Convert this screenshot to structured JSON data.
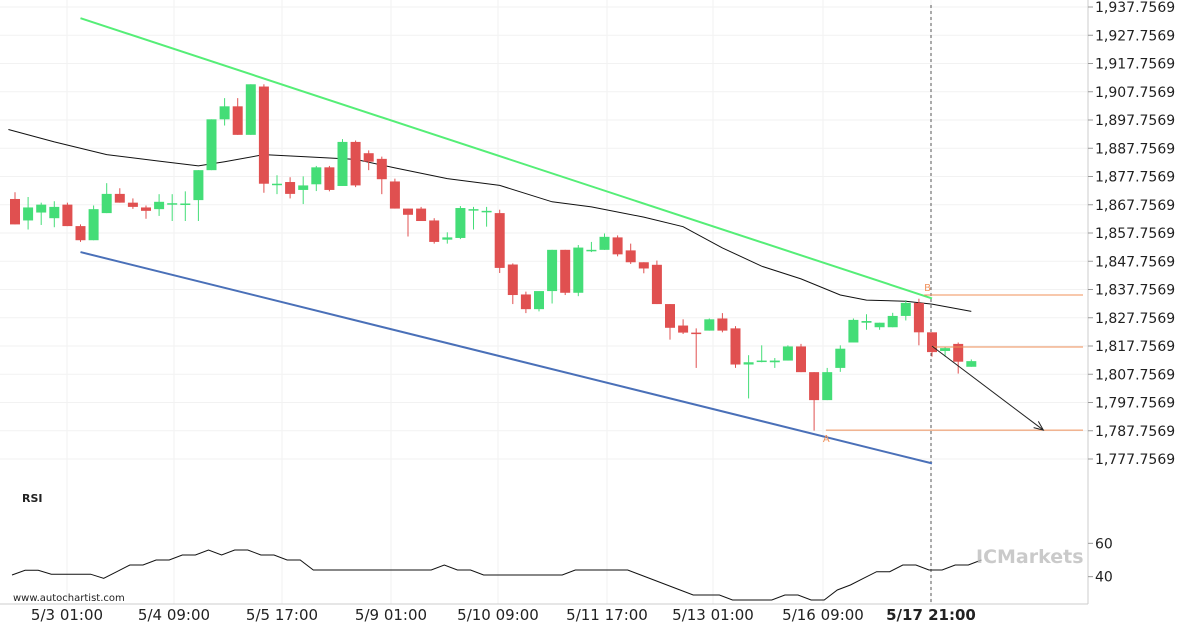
{
  "chart_data": {
    "type": "candlestick",
    "y_axis_labels": [
      "1,937.7569",
      "1,927.7569",
      "1,917.7569",
      "1,907.7569",
      "1,897.7569",
      "1,887.7569",
      "1,877.7569",
      "1,867.7569",
      "1,857.7569",
      "1,847.7569",
      "1,837.7569",
      "1,827.7569",
      "1,817.7569",
      "1,807.7569",
      "1,797.7569",
      "1,787.7569",
      "1,777.7569"
    ],
    "ylim": [
      1772.7569,
      1940.7569
    ],
    "x_labels": [
      "5/3 01:00",
      "5/4 09:00",
      "5/5 17:00",
      "5/9 01:00",
      "5/10 09:00",
      "5/11 17:00",
      "5/13 01:00",
      "5/16 09:00",
      "5/17 21:00"
    ],
    "highlighted_x_label": "5/17 21:00",
    "candles": [
      {
        "o": 1869.8,
        "h": 1872.2,
        "l": 1860.8,
        "c": 1860.8
      },
      {
        "o": 1862.2,
        "h": 1870.5,
        "l": 1859.0,
        "c": 1866.8
      },
      {
        "o": 1865.0,
        "h": 1868.5,
        "l": 1860.6,
        "c": 1867.8
      },
      {
        "o": 1863.0,
        "h": 1869.0,
        "l": 1859.8,
        "c": 1867.0
      },
      {
        "o": 1867.8,
        "h": 1868.5,
        "l": 1860.2,
        "c": 1860.2
      },
      {
        "o": 1860.2,
        "h": 1860.8,
        "l": 1854.6,
        "c": 1855.2
      },
      {
        "o": 1855.2,
        "h": 1867.5,
        "l": 1855.2,
        "c": 1866.2
      },
      {
        "o": 1864.8,
        "h": 1875.4,
        "l": 1864.8,
        "c": 1871.6
      },
      {
        "o": 1871.6,
        "h": 1873.6,
        "l": 1868.5,
        "c": 1868.5
      },
      {
        "o": 1868.5,
        "h": 1870.0,
        "l": 1866.3,
        "c": 1867.0
      },
      {
        "o": 1866.8,
        "h": 1867.5,
        "l": 1862.8,
        "c": 1865.6
      },
      {
        "o": 1866.2,
        "h": 1871.5,
        "l": 1863.8,
        "c": 1868.8
      },
      {
        "o": 1868.3,
        "h": 1871.5,
        "l": 1862.0,
        "c": 1868.3
      },
      {
        "o": 1868.2,
        "h": 1872.5,
        "l": 1862.0,
        "c": 1868.2
      },
      {
        "o": 1869.4,
        "h": 1880.0,
        "l": 1862.0,
        "c": 1880.0
      },
      {
        "o": 1880.0,
        "h": 1898.0,
        "l": 1880.0,
        "c": 1898.0
      },
      {
        "o": 1898.0,
        "h": 1905.5,
        "l": 1895.8,
        "c": 1902.6
      },
      {
        "o": 1902.6,
        "h": 1905.5,
        "l": 1892.5,
        "c": 1892.5
      },
      {
        "o": 1892.5,
        "h": 1910.4,
        "l": 1892.5,
        "c": 1910.4
      },
      {
        "o": 1909.6,
        "h": 1910.4,
        "l": 1872.0,
        "c": 1875.2
      },
      {
        "o": 1875.2,
        "h": 1878.2,
        "l": 1871.5,
        "c": 1875.2
      },
      {
        "o": 1875.8,
        "h": 1877.5,
        "l": 1870.0,
        "c": 1871.6
      },
      {
        "o": 1873.0,
        "h": 1877.8,
        "l": 1868.0,
        "c": 1874.6
      },
      {
        "o": 1875.0,
        "h": 1881.5,
        "l": 1872.6,
        "c": 1881.0
      },
      {
        "o": 1881.0,
        "h": 1881.5,
        "l": 1872.5,
        "c": 1873.0
      },
      {
        "o": 1874.4,
        "h": 1891.0,
        "l": 1874.4,
        "c": 1890.0
      },
      {
        "o": 1890.0,
        "h": 1890.5,
        "l": 1874.0,
        "c": 1874.6
      },
      {
        "o": 1886.0,
        "h": 1887.0,
        "l": 1880.0,
        "c": 1883.0
      },
      {
        "o": 1884.0,
        "h": 1884.8,
        "l": 1871.5,
        "c": 1876.8
      },
      {
        "o": 1876.0,
        "h": 1877.0,
        "l": 1866.4,
        "c": 1866.4
      },
      {
        "o": 1866.4,
        "h": 1866.4,
        "l": 1856.5,
        "c": 1864.2
      },
      {
        "o": 1866.4,
        "h": 1867.0,
        "l": 1862.0,
        "c": 1862.0
      },
      {
        "o": 1862.2,
        "h": 1863.0,
        "l": 1854.0,
        "c": 1854.6
      },
      {
        "o": 1855.4,
        "h": 1858.0,
        "l": 1854.0,
        "c": 1856.2
      },
      {
        "o": 1856.0,
        "h": 1867.3,
        "l": 1855.6,
        "c": 1866.6
      },
      {
        "o": 1866.2,
        "h": 1867.0,
        "l": 1859.0,
        "c": 1866.2
      },
      {
        "o": 1865.6,
        "h": 1867.0,
        "l": 1860.0,
        "c": 1865.6
      },
      {
        "o": 1864.8,
        "h": 1866.0,
        "l": 1843.6,
        "c": 1845.4
      },
      {
        "o": 1846.6,
        "h": 1847.0,
        "l": 1832.6,
        "c": 1835.8
      },
      {
        "o": 1836.0,
        "h": 1837.0,
        "l": 1829.4,
        "c": 1830.8
      },
      {
        "o": 1830.8,
        "h": 1837.0,
        "l": 1830.0,
        "c": 1837.2
      },
      {
        "o": 1837.2,
        "h": 1851.8,
        "l": 1832.8,
        "c": 1851.8
      },
      {
        "o": 1851.8,
        "h": 1851.8,
        "l": 1835.8,
        "c": 1836.6
      },
      {
        "o": 1836.6,
        "h": 1853.5,
        "l": 1835.4,
        "c": 1852.6
      },
      {
        "o": 1851.8,
        "h": 1854.6,
        "l": 1851.0,
        "c": 1851.8
      },
      {
        "o": 1851.8,
        "h": 1857.6,
        "l": 1851.8,
        "c": 1856.4
      },
      {
        "o": 1856.2,
        "h": 1856.9,
        "l": 1849.5,
        "c": 1850.2
      },
      {
        "o": 1851.6,
        "h": 1854.0,
        "l": 1846.8,
        "c": 1847.4
      },
      {
        "o": 1847.4,
        "h": 1847.4,
        "l": 1843.5,
        "c": 1845.2
      },
      {
        "o": 1846.5,
        "h": 1848.0,
        "l": 1832.6,
        "c": 1832.6
      },
      {
        "o": 1832.6,
        "h": 1832.6,
        "l": 1820.0,
        "c": 1824.2
      },
      {
        "o": 1825.0,
        "h": 1827.2,
        "l": 1822.0,
        "c": 1822.5
      },
      {
        "o": 1822.5,
        "h": 1824.0,
        "l": 1810.0,
        "c": 1822.0
      },
      {
        "o": 1823.2,
        "h": 1827.5,
        "l": 1823.2,
        "c": 1827.2
      },
      {
        "o": 1827.5,
        "h": 1829.4,
        "l": 1822.6,
        "c": 1823.2
      },
      {
        "o": 1824.0,
        "h": 1824.8,
        "l": 1810.0,
        "c": 1811.2
      },
      {
        "o": 1811.2,
        "h": 1814.5,
        "l": 1799.2,
        "c": 1812.0
      },
      {
        "o": 1812.6,
        "h": 1818.0,
        "l": 1812.0,
        "c": 1812.6
      },
      {
        "o": 1812.0,
        "h": 1813.5,
        "l": 1810.0,
        "c": 1812.6
      },
      {
        "o": 1812.6,
        "h": 1818.0,
        "l": 1812.6,
        "c": 1817.6
      },
      {
        "o": 1817.6,
        "h": 1818.5,
        "l": 1808.5,
        "c": 1808.5
      },
      {
        "o": 1808.5,
        "h": 1808.5,
        "l": 1787.8,
        "c": 1798.6
      },
      {
        "o": 1798.6,
        "h": 1810.0,
        "l": 1798.6,
        "c": 1808.5
      },
      {
        "o": 1810.0,
        "h": 1818.0,
        "l": 1808.6,
        "c": 1816.8
      },
      {
        "o": 1819.0,
        "h": 1827.5,
        "l": 1819.0,
        "c": 1827.0
      },
      {
        "o": 1826.0,
        "h": 1829.0,
        "l": 1823.5,
        "c": 1826.6
      },
      {
        "o": 1824.4,
        "h": 1826.0,
        "l": 1823.5,
        "c": 1826.0
      },
      {
        "o": 1824.4,
        "h": 1829.5,
        "l": 1824.4,
        "c": 1828.4
      },
      {
        "o": 1828.4,
        "h": 1834.0,
        "l": 1826.8,
        "c": 1833.0
      },
      {
        "o": 1833.0,
        "h": 1834.5,
        "l": 1818.0,
        "c": 1822.6
      },
      {
        "o": 1822.6,
        "h": 1822.6,
        "l": 1814.0,
        "c": 1815.6
      },
      {
        "o": 1816.0,
        "h": 1817.5,
        "l": 1814.0,
        "c": 1817.0
      },
      {
        "o": 1818.5,
        "h": 1819.0,
        "l": 1808.0,
        "c": 1812.2
      },
      {
        "o": 1810.4,
        "h": 1813.0,
        "l": 1810.4,
        "c": 1812.4
      }
    ],
    "moving_average": [
      {
        "i": -0.5,
        "v": 1894.4
      },
      {
        "i": 3,
        "v": 1890.0
      },
      {
        "i": 7,
        "v": 1885.5
      },
      {
        "i": 11,
        "v": 1883.2
      },
      {
        "i": 14,
        "v": 1881.5
      },
      {
        "i": 16,
        "v": 1883.0
      },
      {
        "i": 19,
        "v": 1885.5
      },
      {
        "i": 22,
        "v": 1884.8
      },
      {
        "i": 26,
        "v": 1883.8
      },
      {
        "i": 29,
        "v": 1880.8
      },
      {
        "i": 33,
        "v": 1877.0
      },
      {
        "i": 37,
        "v": 1874.6
      },
      {
        "i": 41,
        "v": 1868.8
      },
      {
        "i": 44,
        "v": 1867.0
      },
      {
        "i": 48,
        "v": 1863.4
      },
      {
        "i": 51,
        "v": 1860.0
      },
      {
        "i": 54,
        "v": 1852.5
      },
      {
        "i": 57,
        "v": 1846.0
      },
      {
        "i": 60,
        "v": 1841.5
      },
      {
        "i": 63,
        "v": 1835.8
      },
      {
        "i": 65,
        "v": 1834.0
      },
      {
        "i": 68,
        "v": 1833.6
      },
      {
        "i": 70,
        "v": 1832.6
      },
      {
        "i": 73,
        "v": 1830.0
      }
    ],
    "resistance_line": {
      "from": {
        "i": 5,
        "v": 1933.8
      },
      "to": {
        "i": 70,
        "v": 1834.6
      }
    },
    "support_line": {
      "from": {
        "i": 5,
        "v": 1851.0
      },
      "to": {
        "i": 70,
        "v": 1776.2
      }
    },
    "forecast_arrow": {
      "from": {
        "i": 70,
        "v": 1817.7
      },
      "to": {
        "i": 78.5,
        "v": 1788.0
      }
    },
    "level_B": {
      "label": "B",
      "value": 1835.8,
      "from_i": 69.4
    },
    "level_A": {
      "label": "A",
      "value": 1788.0,
      "from_i": 61.9
    },
    "level_current": {
      "value": 1817.4,
      "from_i": 70
    },
    "indicator": {
      "name": "RSI",
      "y_labels": [
        "60",
        "40"
      ],
      "ylim": [
        20,
        80
      ],
      "values": [
        41,
        43.8,
        43.8,
        41.5,
        41.5,
        41.5,
        41.5,
        39,
        43,
        47,
        47,
        50,
        50,
        53,
        53,
        56,
        53,
        56,
        56,
        53,
        53,
        50,
        50,
        44,
        44,
        44,
        44,
        44,
        44,
        44,
        44,
        44,
        44,
        47,
        44,
        44,
        41,
        41,
        41,
        41,
        41,
        41,
        41,
        44,
        44,
        44,
        44,
        44,
        41,
        38,
        35,
        32,
        29,
        29,
        29,
        26,
        26,
        26,
        26,
        29,
        29,
        26,
        26,
        32,
        35,
        39,
        43,
        43,
        47,
        47,
        44,
        44,
        47,
        47,
        50
      ]
    },
    "watermark": "ICMarkets",
    "source": "www.autochartist.com"
  }
}
